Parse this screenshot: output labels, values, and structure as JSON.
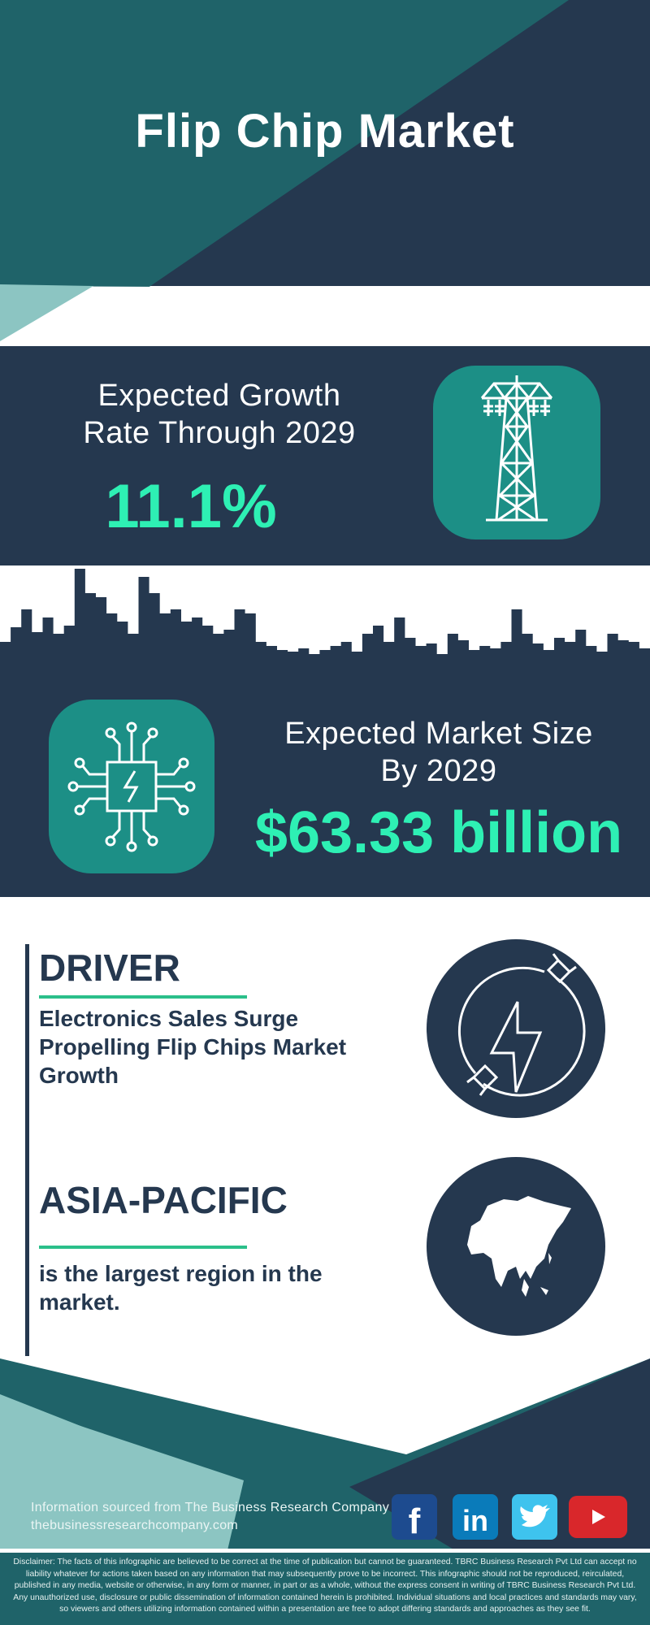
{
  "header": {
    "title": "Flip Chip Market"
  },
  "growth": {
    "label_line1": "Expected Growth",
    "label_line2": "Rate Through 2029",
    "value": "11.1%",
    "icon": "transmission-tower-icon"
  },
  "market_size": {
    "label_line1": "Expected Market Size",
    "label_line2": "By 2029",
    "value": "$63.33 billion",
    "icon": "circuit-chip-icon"
  },
  "driver": {
    "heading": "DRIVER",
    "text": "Electronics Sales Surge Propelling Flip Chips Market Growth",
    "icon": "power-plug-bolt-icon"
  },
  "region": {
    "heading": "ASIA-PACIFIC",
    "text": "is the largest region in the market.",
    "icon": "asia-map-icon"
  },
  "footer": {
    "source_line": "Information sourced from The Business Research Company",
    "website": "thebusinessresearchcompany.com",
    "social": [
      {
        "name": "facebook",
        "color": "#1d4b8f"
      },
      {
        "name": "linkedin",
        "color": "#0a7bba"
      },
      {
        "name": "twitter",
        "color": "#3ec3ee"
      },
      {
        "name": "youtube",
        "color": "#d9272b"
      }
    ],
    "disclaimer": "Disclaimer: The facts of this infographic are believed to be correct at the time of publication but cannot be guaranteed. TBRC Business Research Pvt Ltd can accept no liability whatever for actions taken based on any information that may subsequently prove to be incorrect. This infographic should not be reproduced, reirculated, published in any media, website or otherwise, in any form or manner, in part or as a whole, without the express consent in writing of TBRC Business Research Pvt Ltd. Any unauthorized use, disclosure or public dissemination of information contained herein is prohibited. Individual situations and local practices and standards may vary, so viewers and others utilizing information contained within a presentation are free to adopt differing standards and approaches as they see fit."
  },
  "colors": {
    "navy": "#25384f",
    "teal": "#1f6369",
    "light_teal": "#8cc5c2",
    "icon_teal": "#1c8f86",
    "accent_green": "#2ef0b4"
  }
}
